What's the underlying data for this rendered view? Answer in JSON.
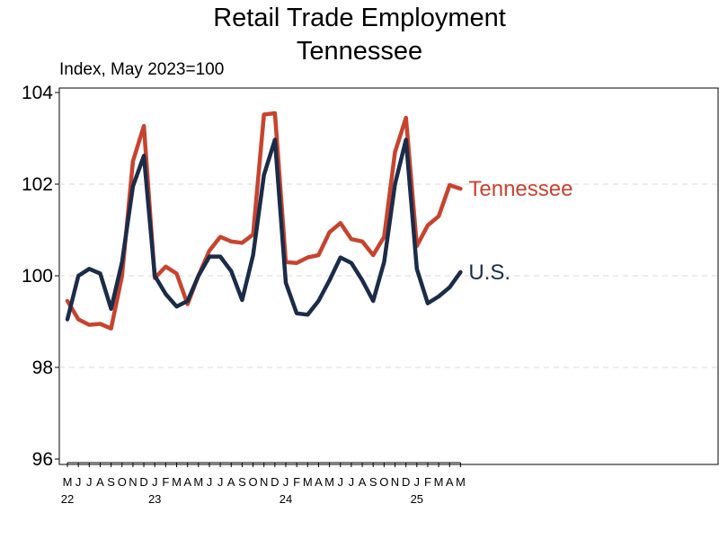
{
  "chart_data": {
    "type": "line",
    "title": "Retail Trade Employment",
    "subtitle": "Tennessee",
    "ylabel": "Index, May 2023=100",
    "ylim": [
      96,
      104
    ],
    "yticks": [
      "96",
      "98",
      "100",
      "102",
      "104"
    ],
    "grid": "horizontal dashed",
    "x": [
      "M",
      "J",
      "J",
      "A",
      "S",
      "O",
      "N",
      "D",
      "J",
      "F",
      "M",
      "A",
      "M",
      "J",
      "J",
      "A",
      "S",
      "O",
      "N",
      "D",
      "J",
      "F",
      "M",
      "A",
      "M",
      "J",
      "J",
      "A",
      "S",
      "O",
      "N",
      "D",
      "J",
      "F",
      "M",
      "A",
      "M"
    ],
    "year_labels": [
      {
        "label": "22",
        "index": 0
      },
      {
        "label": "23",
        "index": 8
      },
      {
        "label": "24",
        "index": 20
      },
      {
        "label": "25",
        "index": 32
      }
    ],
    "series": [
      {
        "name": "Tennessee",
        "color": "#c8432f",
        "values": [
          99.45,
          99.05,
          98.93,
          98.95,
          98.85,
          100.0,
          102.5,
          103.27,
          99.95,
          100.2,
          100.05,
          99.38,
          100.0,
          100.55,
          100.85,
          100.75,
          100.72,
          100.9,
          103.52,
          103.55,
          100.3,
          100.28,
          100.4,
          100.45,
          100.95,
          101.15,
          100.8,
          100.75,
          100.45,
          100.85,
          102.7,
          103.45,
          100.65,
          101.1,
          101.3,
          101.98,
          101.9
        ]
      },
      {
        "name": "U.S.",
        "color": "#1b2c48",
        "values": [
          99.05,
          100.0,
          100.15,
          100.05,
          99.28,
          100.3,
          101.95,
          102.62,
          100.0,
          99.6,
          99.33,
          99.45,
          100.0,
          100.42,
          100.42,
          100.1,
          99.47,
          100.45,
          102.2,
          102.97,
          99.85,
          99.18,
          99.15,
          99.45,
          99.9,
          100.4,
          100.28,
          99.9,
          99.45,
          100.3,
          102.0,
          102.97,
          100.15,
          99.4,
          99.55,
          99.75,
          100.08
        ]
      }
    ]
  }
}
